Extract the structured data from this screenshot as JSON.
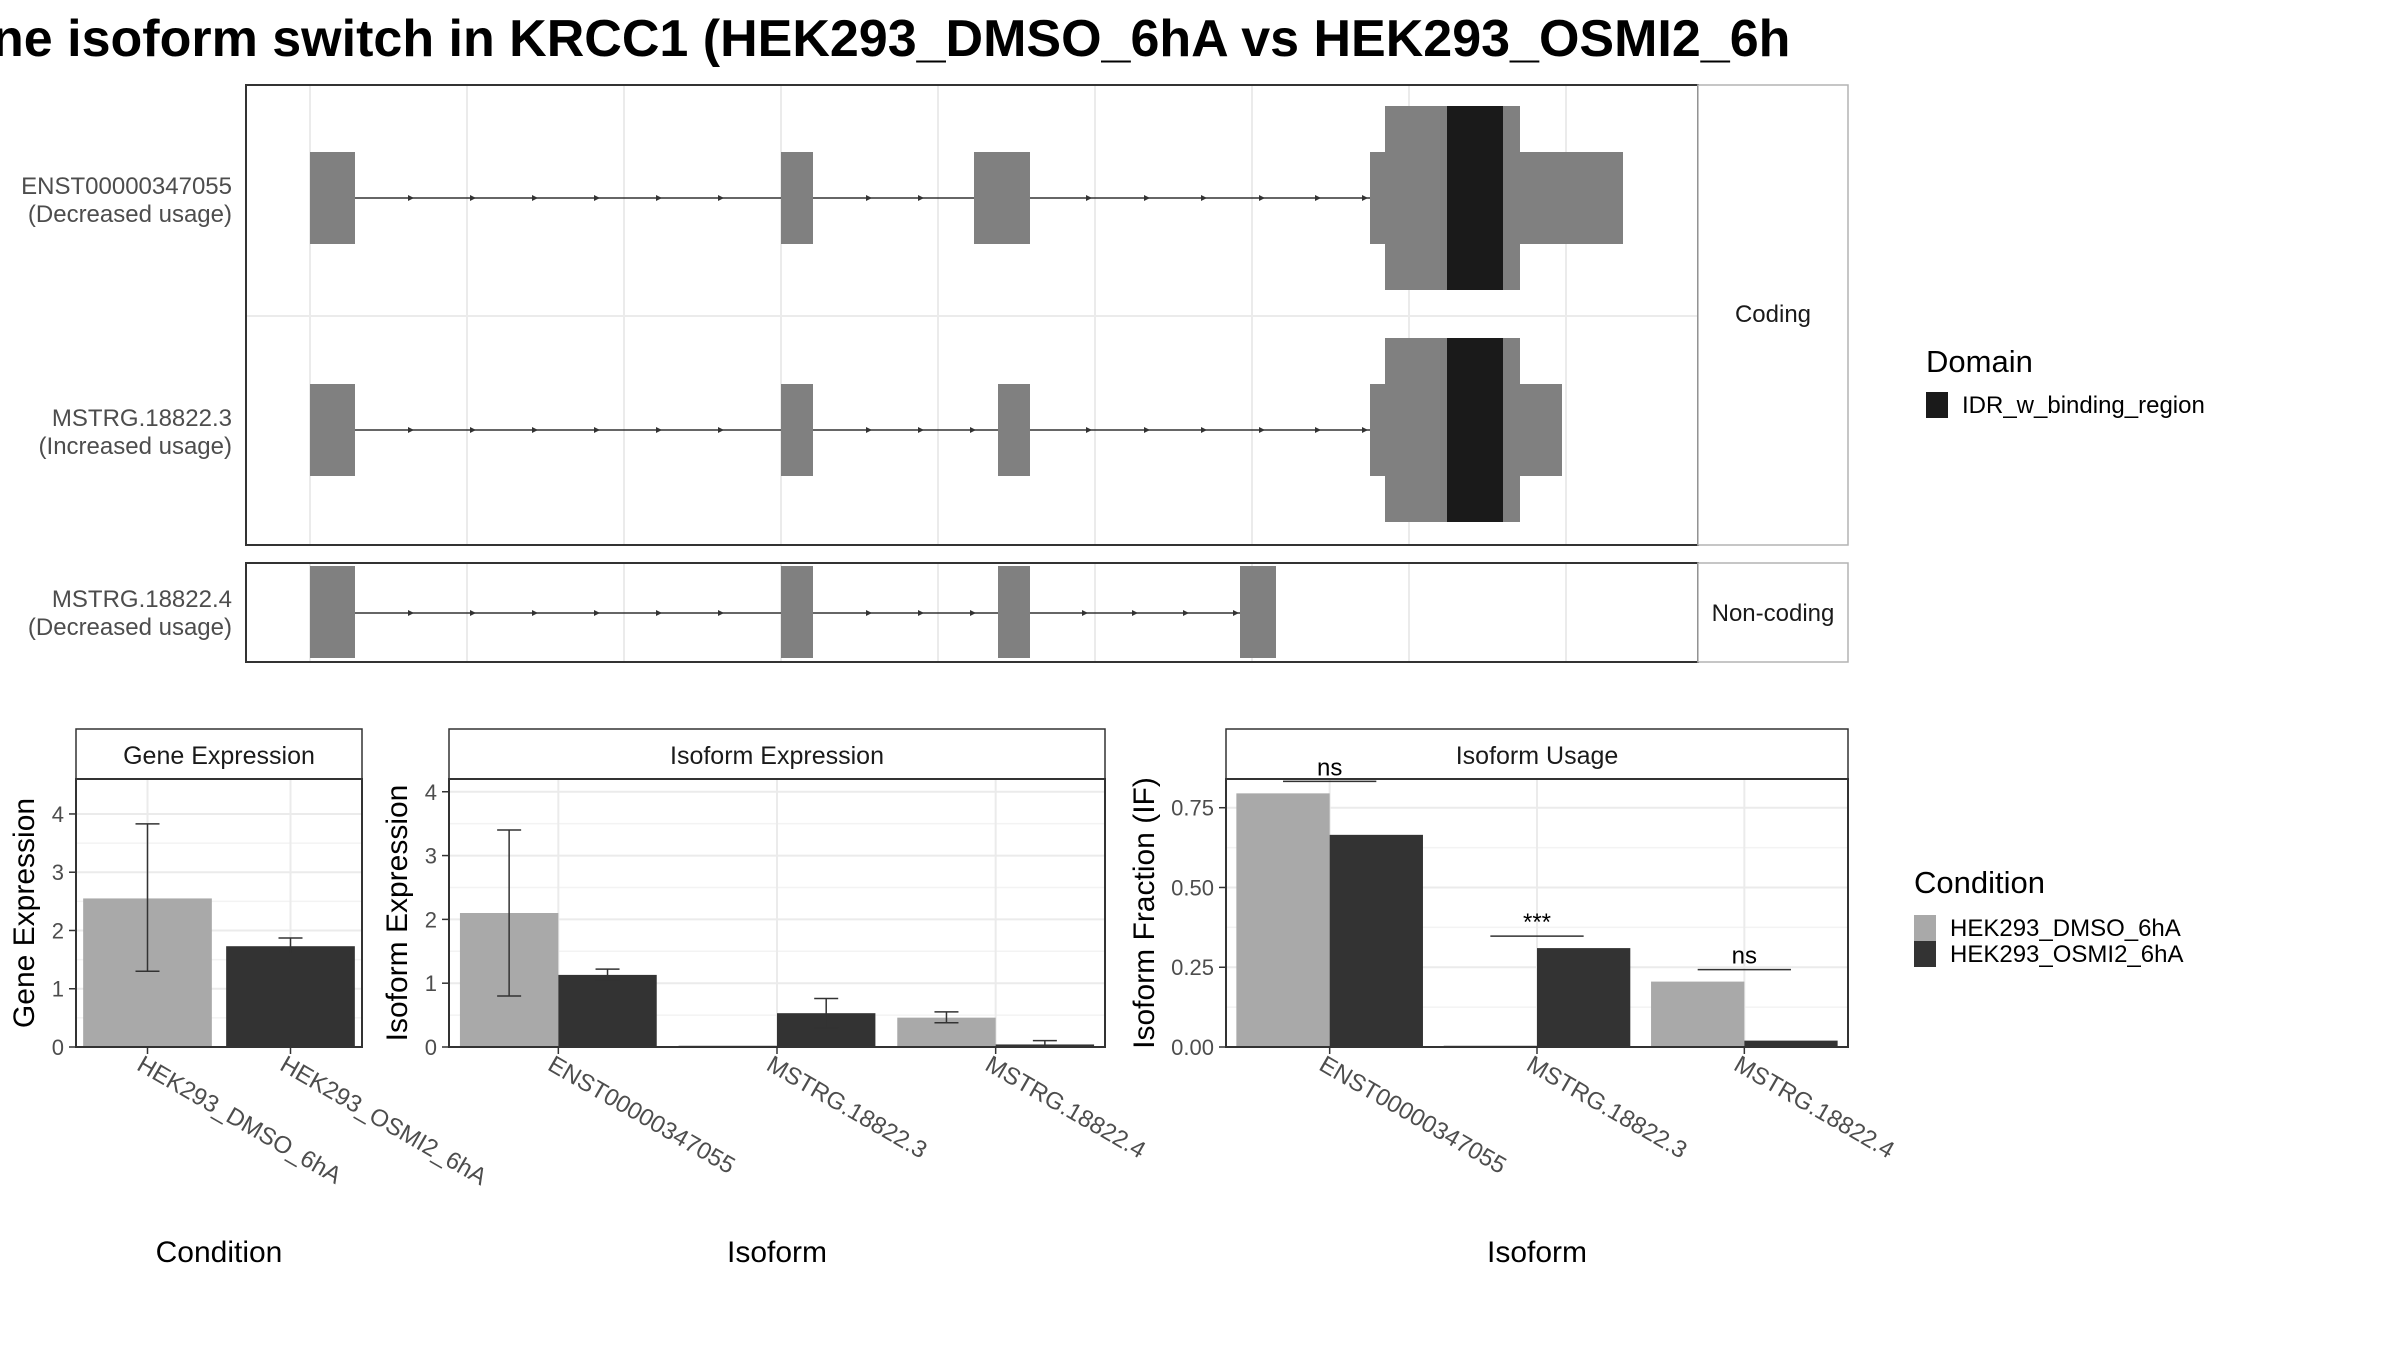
{
  "title": "ne isoform switch in KRCC1 (HEK293_DMSO_6hA vs HEK293_OSMI2_6h",
  "colors": {
    "exon": "#808080",
    "domain": "#1a1a1a",
    "dmso": "#a9a9a9",
    "osmi": "#333333",
    "grid": "#ebebeb",
    "panel_border": "#333333",
    "strip_bg": "#ffffff"
  },
  "structure": {
    "isoforms": [
      {
        "id": "ENST00000347055",
        "usage": "(Decreased usage)",
        "group": "Coding"
      },
      {
        "id": "MSTRG.18822.3",
        "usage": "(Increased usage)",
        "group": "Coding"
      },
      {
        "id": "MSTRG.18822.4",
        "usage": "(Decreased usage)",
        "group": "Non-coding"
      }
    ],
    "facet_labels": [
      "Coding",
      "Non-coding"
    ],
    "domain_legend": {
      "title": "Domain",
      "items": [
        {
          "label": "IDR_w_binding_region",
          "color": "#1a1a1a"
        }
      ]
    }
  },
  "condition_legend": {
    "title": "Condition",
    "items": [
      {
        "label": "HEK293_DMSO_6hA",
        "color": "#a9a9a9"
      },
      {
        "label": "HEK293_OSMI2_6hA",
        "color": "#333333"
      }
    ]
  },
  "chart_data": [
    {
      "type": "bar",
      "title": "Gene Expression",
      "xlabel": "Condition",
      "ylabel": "Gene Expression",
      "ylim": [
        0,
        4.6
      ],
      "yticks": [
        0,
        1,
        2,
        3,
        4
      ],
      "categories": [
        "HEK293_DMSO_6hA",
        "HEK293_OSMI2_6hA"
      ],
      "series": [
        {
          "name": "HEK293_DMSO_6hA",
          "values": [
            2.55,
            null
          ],
          "err_low": [
            1.3,
            null
          ],
          "err_high": [
            3.83,
            null
          ]
        },
        {
          "name": "HEK293_OSMI2_6hA",
          "values": [
            null,
            1.73
          ],
          "err_low": [
            null,
            1.6
          ],
          "err_high": [
            null,
            1.87
          ]
        }
      ]
    },
    {
      "type": "bar",
      "title": "Isoform Expression",
      "xlabel": "Isoform",
      "ylabel": "Isoform Expression",
      "ylim": [
        0,
        4.2
      ],
      "yticks": [
        0,
        1,
        2,
        3,
        4
      ],
      "categories": [
        "ENST00000347055",
        "MSTRG.18822.3",
        "MSTRG.18822.4"
      ],
      "series": [
        {
          "name": "HEK293_DMSO_6hA",
          "values": [
            2.1,
            0.0,
            0.46
          ],
          "err_low": [
            0.8,
            0.0,
            0.38
          ],
          "err_high": [
            3.4,
            0.0,
            0.55
          ]
        },
        {
          "name": "HEK293_OSMI2_6hA",
          "values": [
            1.13,
            0.53,
            0.04
          ],
          "err_low": [
            1.05,
            0.3,
            0.0
          ],
          "err_high": [
            1.22,
            0.76,
            0.1
          ]
        }
      ]
    },
    {
      "type": "bar",
      "title": "Isoform Usage",
      "xlabel": "Isoform",
      "ylabel": "Isoform Fraction (IF)",
      "ylim": [
        0,
        0.84
      ],
      "yticks": [
        0.0,
        0.25,
        0.5,
        0.75
      ],
      "ytick_labels": [
        "0.00",
        "0.25",
        "0.50",
        "0.75"
      ],
      "categories": [
        "ENST00000347055",
        "MSTRG.18822.3",
        "MSTRG.18822.4"
      ],
      "series": [
        {
          "name": "HEK293_DMSO_6hA",
          "values": [
            0.795,
            0.0,
            0.205
          ]
        },
        {
          "name": "HEK293_OSMI2_6hA",
          "values": [
            0.665,
            0.31,
            0.02
          ]
        }
      ],
      "significance": [
        "ns",
        "***",
        "ns"
      ]
    }
  ]
}
